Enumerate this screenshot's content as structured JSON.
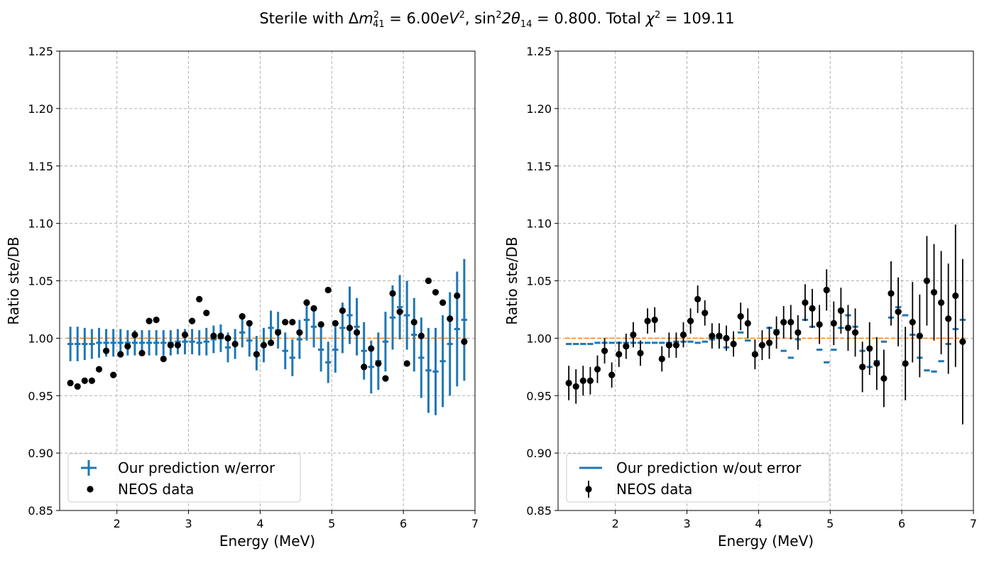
{
  "figure": {
    "title_parts": {
      "prefix": "Sterile with Δ",
      "m": "m",
      "m_sub": "41",
      "m_sup": "2",
      "eq1": " = 6.00",
      "unit": "eV",
      "unit_sup": "2",
      "sep": ", sin",
      "sin_sup": "2",
      "theta": "2θ",
      "theta_sub": "14",
      "eq2": " = 0.800. Total ",
      "chi": "χ",
      "chi_sup": "2",
      "eq3": " = 109.11"
    }
  },
  "colors": {
    "prediction": "#1f77b4",
    "data": "#000000",
    "reference": "#ff7f0e",
    "grid": "#b0b0b0"
  },
  "chart_data": [
    {
      "type": "scatter",
      "panel": "left",
      "xlabel": "Energy (MeV)",
      "ylabel": "Ratio ste/DB",
      "xlim": [
        1.2,
        7.0
      ],
      "ylim": [
        0.85,
        1.25
      ],
      "xticks": [
        2,
        3,
        4,
        5,
        6,
        7
      ],
      "yticks": [
        "0.85",
        "0.90",
        "0.95",
        "1.00",
        "1.05",
        "1.10",
        "1.15",
        "1.20",
        "1.25"
      ],
      "grid": true,
      "legend_position": "lower-left",
      "reference_line": 1.0,
      "series": [
        {
          "name": "Our prediction w/error",
          "style": "errorbar-cross",
          "x": [
            1.35,
            1.45,
            1.55,
            1.65,
            1.75,
            1.85,
            1.95,
            2.05,
            2.15,
            2.25,
            2.35,
            2.45,
            2.55,
            2.65,
            2.75,
            2.85,
            2.95,
            3.05,
            3.15,
            3.25,
            3.35,
            3.45,
            3.55,
            3.65,
            3.75,
            3.85,
            3.95,
            4.05,
            4.15,
            4.25,
            4.35,
            4.45,
            4.55,
            4.65,
            4.75,
            4.85,
            4.95,
            5.05,
            5.15,
            5.25,
            5.35,
            5.45,
            5.55,
            5.65,
            5.75,
            5.85,
            5.95,
            6.05,
            6.15,
            6.25,
            6.35,
            6.45,
            6.55,
            6.65,
            6.75,
            6.85
          ],
          "y": [
            0.995,
            0.995,
            0.995,
            0.995,
            0.996,
            0.996,
            0.996,
            0.996,
            0.996,
            0.996,
            0.996,
            0.996,
            0.996,
            0.996,
            0.996,
            0.997,
            0.997,
            0.997,
            0.996,
            0.997,
            0.999,
            1.0,
            0.992,
            0.995,
            1.005,
            0.998,
            0.987,
            0.994,
            1.009,
            1.007,
            0.989,
            0.983,
            0.999,
            1.016,
            1.01,
            0.99,
            0.979,
            0.99,
            1.009,
            1.02,
            1.01,
            0.989,
            0.975,
            0.98,
            0.997,
            1.018,
            1.027,
            1.02,
            1.003,
            0.983,
            0.972,
            0.971,
            0.98,
            0.995,
            1.008,
            1.016
          ],
          "yerr": [
            0.015,
            0.015,
            0.014,
            0.013,
            0.013,
            0.012,
            0.012,
            0.012,
            0.011,
            0.011,
            0.011,
            0.011,
            0.011,
            0.011,
            0.011,
            0.011,
            0.011,
            0.011,
            0.011,
            0.012,
            0.012,
            0.012,
            0.013,
            0.013,
            0.013,
            0.014,
            0.015,
            0.015,
            0.015,
            0.016,
            0.016,
            0.016,
            0.017,
            0.018,
            0.018,
            0.019,
            0.018,
            0.02,
            0.022,
            0.025,
            0.025,
            0.025,
            0.023,
            0.025,
            0.026,
            0.028,
            0.028,
            0.03,
            0.032,
            0.035,
            0.037,
            0.038,
            0.04,
            0.045,
            0.05,
            0.053
          ]
        },
        {
          "name": "NEOS data",
          "style": "marker",
          "x": [
            1.35,
            1.45,
            1.55,
            1.65,
            1.75,
            1.85,
            1.95,
            2.05,
            2.15,
            2.25,
            2.35,
            2.45,
            2.55,
            2.65,
            2.75,
            2.85,
            2.95,
            3.05,
            3.15,
            3.25,
            3.35,
            3.45,
            3.55,
            3.65,
            3.75,
            3.85,
            3.95,
            4.05,
            4.15,
            4.25,
            4.35,
            4.45,
            4.55,
            4.65,
            4.75,
            4.85,
            4.95,
            5.05,
            5.15,
            5.25,
            5.35,
            5.45,
            5.55,
            5.65,
            5.75,
            5.85,
            5.95,
            6.05,
            6.15,
            6.25,
            6.35,
            6.45,
            6.55,
            6.65,
            6.75,
            6.85
          ],
          "y": [
            0.961,
            0.958,
            0.963,
            0.963,
            0.973,
            0.989,
            0.968,
            0.986,
            0.993,
            1.003,
            0.987,
            1.015,
            1.016,
            0.982,
            0.994,
            0.994,
            1.003,
            1.015,
            1.034,
            1.022,
            1.002,
            1.002,
            1.0,
            0.995,
            1.019,
            1.013,
            0.986,
            0.994,
            0.996,
            1.005,
            1.014,
            1.014,
            1.005,
            1.031,
            1.026,
            1.012,
            1.042,
            1.013,
            1.024,
            1.009,
            1.005,
            0.975,
            0.991,
            0.978,
            0.965,
            1.039,
            1.023,
            0.978,
            1.014,
            1.002,
            1.05,
            1.04,
            1.031,
            1.017,
            1.037,
            0.997
          ]
        }
      ]
    },
    {
      "type": "scatter",
      "panel": "right",
      "xlabel": "Energy (MeV)",
      "ylabel": "Ratio ste/DB",
      "xlim": [
        1.2,
        7.0
      ],
      "ylim": [
        0.85,
        1.25
      ],
      "xticks": [
        2,
        3,
        4,
        5,
        6,
        7
      ],
      "yticks": [
        "0.85",
        "0.90",
        "0.95",
        "1.00",
        "1.05",
        "1.10",
        "1.15",
        "1.20",
        "1.25"
      ],
      "grid": true,
      "legend_position": "lower-left",
      "reference_line": 1.0,
      "series": [
        {
          "name": "Our prediction w/out error",
          "style": "step-dash",
          "x": [
            1.35,
            1.45,
            1.55,
            1.65,
            1.75,
            1.85,
            1.95,
            2.05,
            2.15,
            2.25,
            2.35,
            2.45,
            2.55,
            2.65,
            2.75,
            2.85,
            2.95,
            3.05,
            3.15,
            3.25,
            3.35,
            3.45,
            3.55,
            3.65,
            3.75,
            3.85,
            3.95,
            4.05,
            4.15,
            4.25,
            4.35,
            4.45,
            4.55,
            4.65,
            4.75,
            4.85,
            4.95,
            5.05,
            5.15,
            5.25,
            5.35,
            5.45,
            5.55,
            5.65,
            5.75,
            5.85,
            5.95,
            6.05,
            6.15,
            6.25,
            6.35,
            6.45,
            6.55,
            6.65,
            6.75,
            6.85
          ],
          "y": [
            0.995,
            0.995,
            0.995,
            0.995,
            0.996,
            0.996,
            0.996,
            0.996,
            0.996,
            0.996,
            0.996,
            0.996,
            0.996,
            0.996,
            0.996,
            0.997,
            0.997,
            0.997,
            0.996,
            0.997,
            0.999,
            1.0,
            0.992,
            0.995,
            1.005,
            0.998,
            0.987,
            0.994,
            1.009,
            1.007,
            0.989,
            0.983,
            0.999,
            1.016,
            1.01,
            0.99,
            0.979,
            0.99,
            1.009,
            1.02,
            1.01,
            0.989,
            0.975,
            0.98,
            0.997,
            1.018,
            1.027,
            1.02,
            1.003,
            0.983,
            0.972,
            0.971,
            0.98,
            0.995,
            1.008,
            1.016
          ]
        },
        {
          "name": "NEOS data",
          "style": "errorbar-marker",
          "x": [
            1.35,
            1.45,
            1.55,
            1.65,
            1.75,
            1.85,
            1.95,
            2.05,
            2.15,
            2.25,
            2.35,
            2.45,
            2.55,
            2.65,
            2.75,
            2.85,
            2.95,
            3.05,
            3.15,
            3.25,
            3.35,
            3.45,
            3.55,
            3.65,
            3.75,
            3.85,
            3.95,
            4.05,
            4.15,
            4.25,
            4.35,
            4.45,
            4.55,
            4.65,
            4.75,
            4.85,
            4.95,
            5.05,
            5.15,
            5.25,
            5.35,
            5.45,
            5.55,
            5.65,
            5.75,
            5.85,
            5.95,
            6.05,
            6.15,
            6.25,
            6.35,
            6.45,
            6.55,
            6.65,
            6.75,
            6.85
          ],
          "y": [
            0.961,
            0.958,
            0.963,
            0.963,
            0.973,
            0.989,
            0.968,
            0.986,
            0.993,
            1.003,
            0.987,
            1.015,
            1.016,
            0.982,
            0.994,
            0.994,
            1.003,
            1.015,
            1.034,
            1.022,
            1.002,
            1.002,
            1.0,
            0.995,
            1.019,
            1.013,
            0.986,
            0.994,
            0.996,
            1.005,
            1.014,
            1.014,
            1.005,
            1.031,
            1.026,
            1.012,
            1.042,
            1.013,
            1.024,
            1.009,
            1.005,
            0.975,
            0.991,
            0.978,
            0.965,
            1.039,
            1.023,
            0.978,
            1.014,
            1.002,
            1.05,
            1.04,
            1.031,
            1.017,
            1.037,
            0.997
          ],
          "yerr": [
            0.015,
            0.015,
            0.013,
            0.012,
            0.012,
            0.011,
            0.011,
            0.011,
            0.011,
            0.011,
            0.011,
            0.011,
            0.011,
            0.011,
            0.011,
            0.011,
            0.011,
            0.011,
            0.012,
            0.011,
            0.011,
            0.011,
            0.011,
            0.011,
            0.012,
            0.013,
            0.013,
            0.013,
            0.014,
            0.014,
            0.014,
            0.015,
            0.015,
            0.016,
            0.017,
            0.017,
            0.018,
            0.019,
            0.02,
            0.02,
            0.021,
            0.022,
            0.023,
            0.023,
            0.025,
            0.028,
            0.03,
            0.032,
            0.035,
            0.036,
            0.039,
            0.042,
            0.045,
            0.048,
            0.062,
            0.072
          ]
        }
      ]
    }
  ]
}
